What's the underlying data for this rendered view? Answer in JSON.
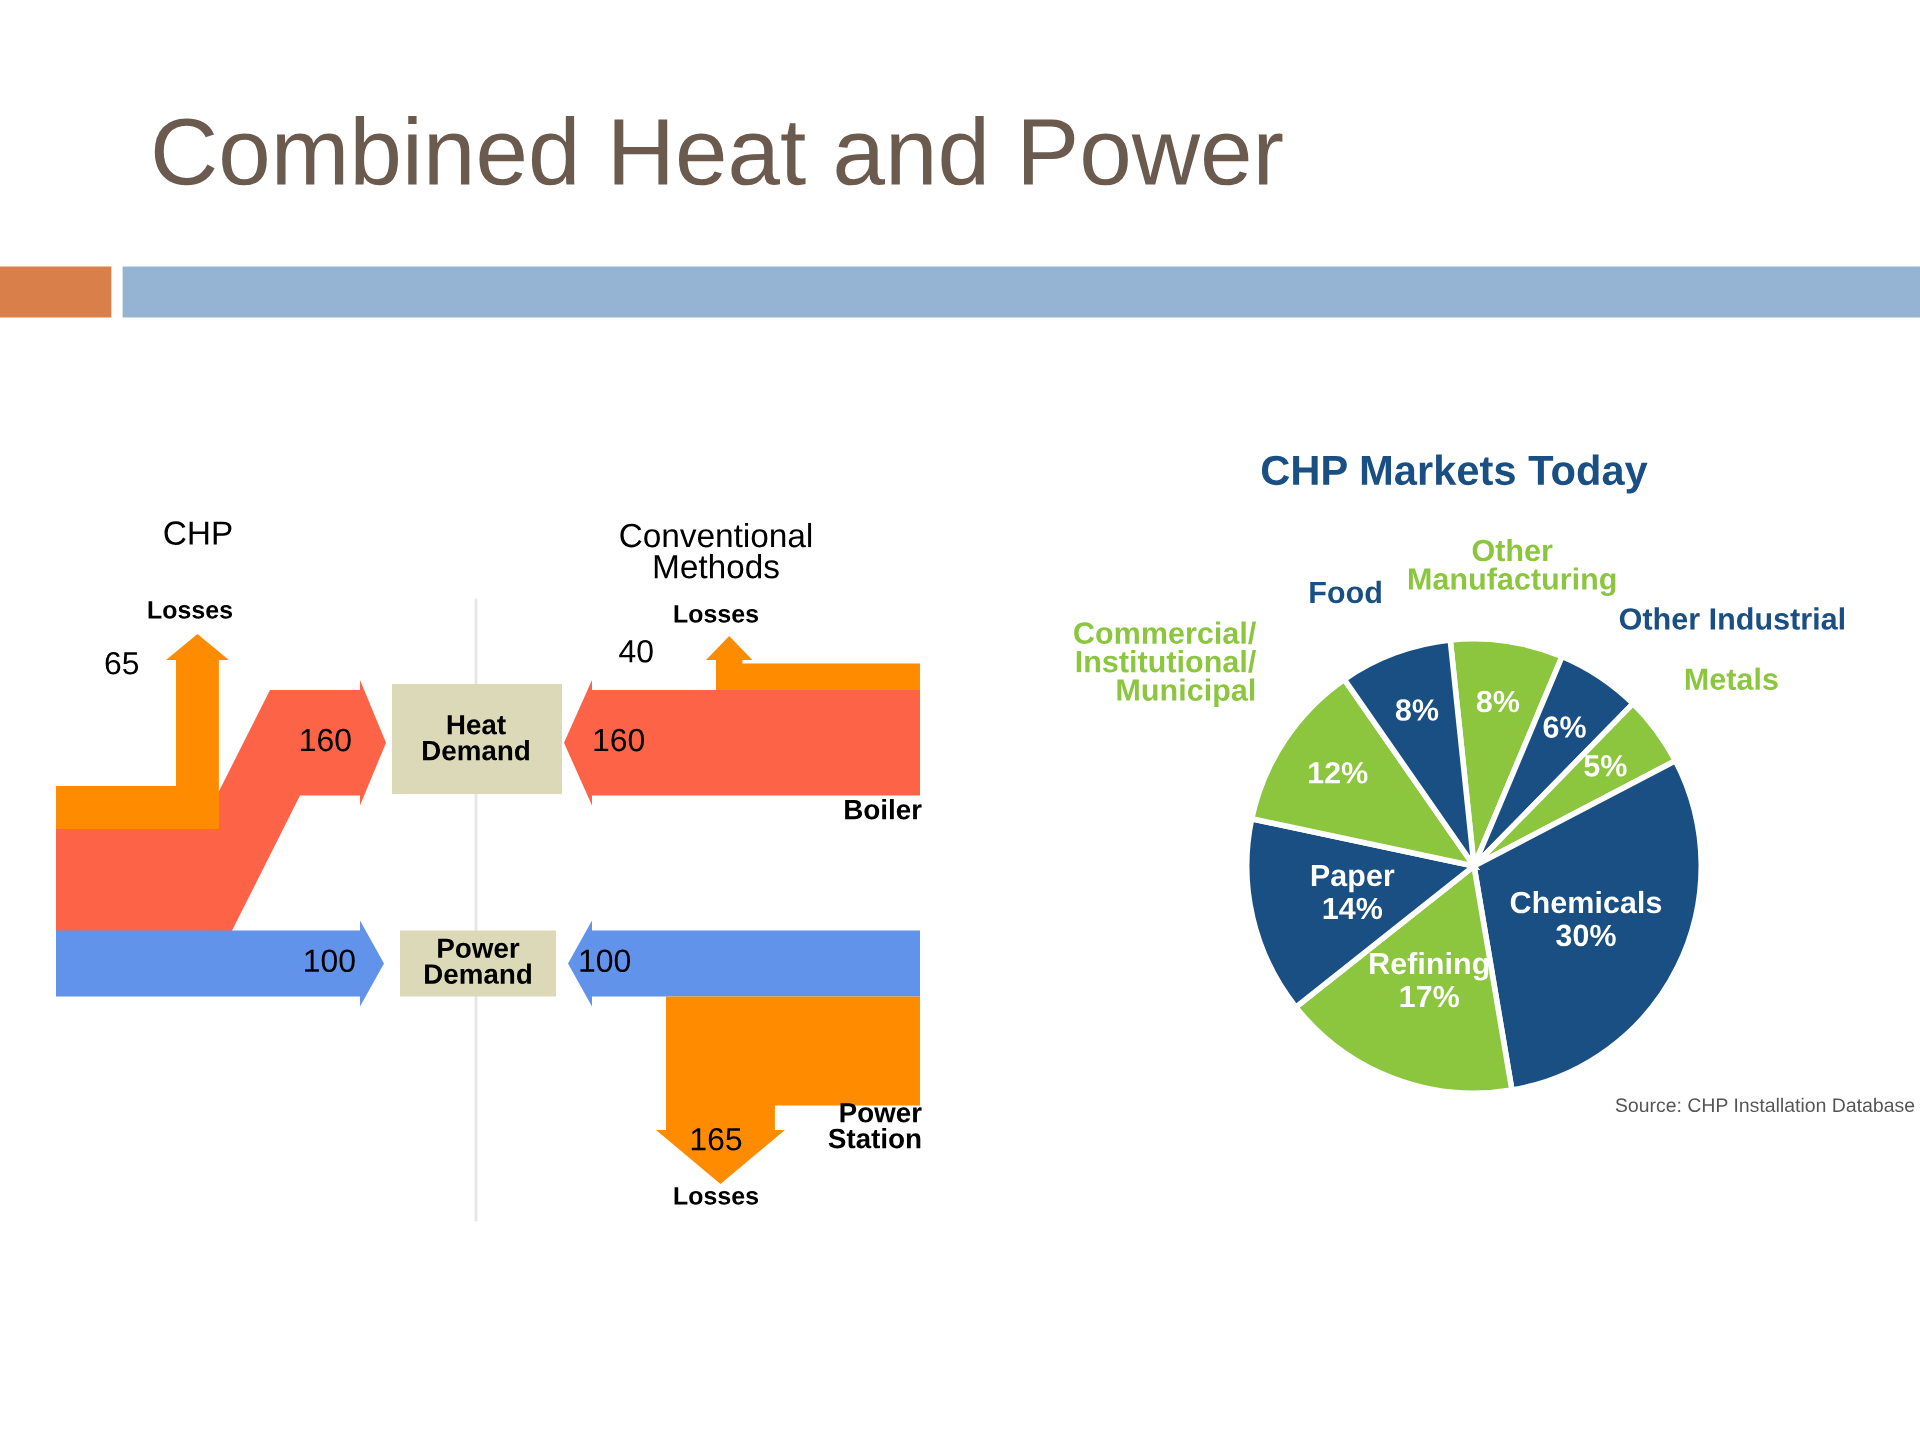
{
  "chart_data": [
    {
      "type": "other",
      "title": "Combined Heat and Power",
      "colors": [
        "#ff8c00",
        "#fd6346",
        "#6293ea",
        "#ff8c00",
        "#fd6346",
        "#6293ea",
        "#ff8c00"
      ],
      "annotations": [
        "65",
        "160",
        "100",
        "40",
        "160",
        "100",
        "165",
        "CHP",
        "Conventional\nMethods",
        "Losses",
        "Losses",
        "Losses",
        "Heat\nDemand",
        "Power\nDemand",
        "Boiler",
        "Power\nStation"
      ]
    },
    {
      "type": "pie",
      "title": "CHP Markets Today",
      "categories": [
        "Other\nManufacturing",
        "Other Industrial",
        "Metals",
        "Chemicals",
        "Refining",
        "Paper",
        "Commercial/\nInstitutional/\nMunicipal",
        "Food"
      ],
      "values": [
        8,
        6,
        5,
        30,
        17,
        14,
        12,
        8
      ],
      "value_labels": [
        "8%",
        "6%",
        "5%",
        "30%",
        "17%",
        "14%",
        "12%",
        "8%"
      ],
      "colors": [
        "#8cc63f",
        "#1a4f84",
        "#8cc63f",
        "#1a4f84",
        "#8cc63f",
        "#1a4f84",
        "#8cc63f",
        "#1a4f84"
      ],
      "annotations": [
        "Source: CHP Installation Database"
      ]
    }
  ]
}
